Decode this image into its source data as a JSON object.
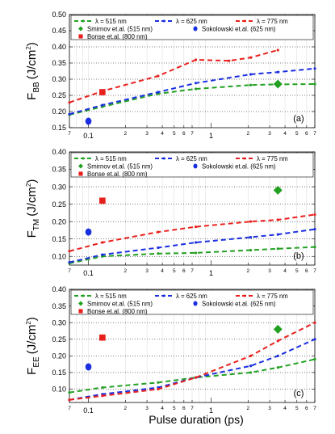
{
  "chart_data": [
    {
      "type": "line",
      "panel_label": "(a)",
      "ylabel_main": "F",
      "ylabel_sub": "BB",
      "ylabel_unit_pre": "(J/cm",
      "ylabel_unit_sup": "2",
      "ylabel_unit_post": ")",
      "ylim": [
        0.15,
        0.5
      ],
      "yticks": [
        0.15,
        0.2,
        0.25,
        0.3,
        0.35,
        0.4,
        0.45,
        0.5
      ],
      "ytick_labels": [
        "0.15",
        "0.20",
        "0.25",
        "0.30",
        "0.35",
        "0.40",
        "0.45",
        "0.50"
      ],
      "legend": {
        "rows": [
          [
            {
              "label": "λ = 515 nm",
              "kind": "line",
              "color": "#22a022"
            },
            {
              "label": "λ = 625 nm",
              "kind": "line",
              "color": "#1a2fe0"
            },
            {
              "label": "λ = 775 nm",
              "kind": "line",
              "color": "#e8201c"
            }
          ],
          [
            {
              "label": "Smirnov et.al. (515 nm)",
              "kind": "diamond",
              "color": "#22a022"
            },
            {
              "label": "Sokolowski et.al. (625 nm)",
              "kind": "circle",
              "color": "#1a2fe0"
            }
          ],
          [
            {
              "label": "Bonse et.al. (800 nm)",
              "kind": "square",
              "color": "#e8201c"
            }
          ]
        ]
      },
      "series": [
        {
          "name": "λ = 515 nm",
          "color": "#22a022",
          "x": [
            0.07,
            0.13,
            0.37,
            0.75,
            2.1,
            3.5,
            7.0
          ],
          "y": [
            0.19,
            0.215,
            0.255,
            0.27,
            0.282,
            0.284,
            0.285
          ]
        },
        {
          "name": "λ = 625 nm",
          "color": "#1a2fe0",
          "x": [
            0.07,
            0.13,
            0.37,
            0.75,
            2.1,
            3.5,
            7.0
          ],
          "y": [
            0.192,
            0.22,
            0.26,
            0.288,
            0.315,
            0.322,
            0.333
          ]
        },
        {
          "name": "λ = 775 nm",
          "color": "#e8201c",
          "x": [
            0.07,
            0.13,
            0.37,
            0.75,
            1.4,
            2.1,
            3.5
          ],
          "y": [
            0.228,
            0.263,
            0.31,
            0.36,
            0.357,
            0.367,
            0.39
          ]
        }
      ],
      "references": [
        {
          "name": "Smirnov et.al. (515 nm)",
          "kind": "diamond",
          "color": "#22a022",
          "x": 3.5,
          "y": 0.285
        },
        {
          "name": "Sokolowski et.al. (625 nm)",
          "kind": "circle",
          "color": "#1a2fe0",
          "x": 0.1,
          "y": 0.17
        },
        {
          "name": "Bonse et.al. (800 nm)",
          "kind": "square",
          "color": "#e8201c",
          "x": 0.13,
          "y": 0.26
        }
      ]
    },
    {
      "type": "line",
      "panel_label": "(b)",
      "ylabel_main": "F",
      "ylabel_sub": "TM",
      "ylabel_unit_pre": "(J/cm",
      "ylabel_unit_sup": "2",
      "ylabel_unit_post": ")",
      "ylim": [
        0.075,
        0.4
      ],
      "yticks": [
        0.1,
        0.15,
        0.2,
        0.25,
        0.3,
        0.35,
        0.4
      ],
      "ytick_labels": [
        "0.10",
        "0.15",
        "0.20",
        "0.25",
        "0.30",
        "0.35",
        "0.40"
      ],
      "legend": {
        "rows": [
          [
            {
              "label": "λ = 515 nm",
              "kind": "line",
              "color": "#22a022"
            },
            {
              "label": "λ = 625 nm",
              "kind": "line",
              "color": "#1a2fe0"
            },
            {
              "label": "λ = 775 nm",
              "kind": "line",
              "color": "#e8201c"
            }
          ],
          [
            {
              "label": "Smirnov et.al. (515 nm)",
              "kind": "diamond",
              "color": "#22a022"
            },
            {
              "label": "Sokolowski et.al. (625 nm)",
              "kind": "circle",
              "color": "#1a2fe0"
            }
          ],
          [
            {
              "label": "Bonse et.al. (800 nm)",
              "kind": "square",
              "color": "#e8201c"
            }
          ]
        ]
      },
      "series": [
        {
          "name": "λ = 515 nm",
          "color": "#22a022",
          "x": [
            0.07,
            0.13,
            0.37,
            0.75,
            2.1,
            3.5,
            7.0
          ],
          "y": [
            0.08,
            0.1,
            0.108,
            0.11,
            0.118,
            0.122,
            0.127
          ]
        },
        {
          "name": "λ = 625 nm",
          "color": "#1a2fe0",
          "x": [
            0.07,
            0.13,
            0.37,
            0.75,
            2.1,
            3.5,
            7.0
          ],
          "y": [
            0.083,
            0.105,
            0.125,
            0.14,
            0.155,
            0.163,
            0.178
          ]
        },
        {
          "name": "λ = 775 nm",
          "color": "#e8201c",
          "x": [
            0.07,
            0.13,
            0.37,
            0.75,
            2.1,
            3.5,
            7.0
          ],
          "y": [
            0.115,
            0.14,
            0.17,
            0.185,
            0.2,
            0.205,
            0.22
          ]
        }
      ],
      "references": [
        {
          "name": "Smirnov et.al. (515 nm)",
          "kind": "diamond",
          "color": "#22a022",
          "x": 3.5,
          "y": 0.29
        },
        {
          "name": "Sokolowski et.al. (625 nm)",
          "kind": "circle",
          "color": "#1a2fe0",
          "x": 0.1,
          "y": 0.17
        },
        {
          "name": "Bonse et.al. (800 nm)",
          "kind": "square",
          "color": "#e8201c",
          "x": 0.13,
          "y": 0.26
        }
      ]
    },
    {
      "type": "line",
      "panel_label": "(c)",
      "ylabel_main": "F",
      "ylabel_sub": "EE",
      "ylabel_unit_pre": "(J/cm",
      "ylabel_unit_sup": "2",
      "ylabel_unit_post": ")",
      "ylim": [
        0.06,
        0.4
      ],
      "yticks": [
        0.1,
        0.15,
        0.2,
        0.25,
        0.3,
        0.35,
        0.4
      ],
      "ytick_labels": [
        "0.10",
        "0.15",
        "0.20",
        "0.25",
        "0.30",
        "0.35",
        "0.40"
      ],
      "legend": {
        "rows": [
          [
            {
              "label": "λ = 515 nm",
              "kind": "line",
              "color": "#22a022"
            },
            {
              "label": "λ = 625 nm",
              "kind": "line",
              "color": "#1a2fe0"
            },
            {
              "label": "λ = 775 nm",
              "kind": "line",
              "color": "#e8201c"
            }
          ],
          [
            {
              "label": "Smirnov et.al. (515 nm)",
              "kind": "diamond",
              "color": "#22a022"
            },
            {
              "label": "Sokolowski et.al. (625 nm)",
              "kind": "circle",
              "color": "#1a2fe0"
            }
          ],
          [
            {
              "label": "Bonse et.al. (800 nm)",
              "kind": "square",
              "color": "#e8201c"
            }
          ]
        ]
      },
      "series": [
        {
          "name": "λ = 515 nm",
          "color": "#22a022",
          "x": [
            0.07,
            0.13,
            0.37,
            0.75,
            2.1,
            3.5,
            7.0
          ],
          "y": [
            0.09,
            0.105,
            0.12,
            0.135,
            0.15,
            0.165,
            0.19
          ]
        },
        {
          "name": "λ = 625 nm",
          "color": "#1a2fe0",
          "x": [
            0.07,
            0.13,
            0.37,
            0.75,
            2.1,
            3.5,
            7.0
          ],
          "y": [
            0.068,
            0.085,
            0.105,
            0.135,
            0.17,
            0.2,
            0.25
          ]
        },
        {
          "name": "λ = 775 nm",
          "color": "#e8201c",
          "x": [
            0.07,
            0.13,
            0.37,
            0.75,
            2.1,
            3.5,
            7.0
          ],
          "y": [
            0.068,
            0.08,
            0.1,
            0.135,
            0.2,
            0.245,
            0.3
          ]
        }
      ],
      "references": [
        {
          "name": "Smirnov et.al. (515 nm)",
          "kind": "diamond",
          "color": "#22a022",
          "x": 3.5,
          "y": 0.28
        },
        {
          "name": "Sokolowski et.al. (625 nm)",
          "kind": "circle",
          "color": "#1a2fe0",
          "x": 0.1,
          "y": 0.167
        },
        {
          "name": "Bonse et.al. (800 nm)",
          "kind": "square",
          "color": "#e8201c",
          "x": 0.13,
          "y": 0.255
        }
      ]
    }
  ],
  "x_axis": {
    "label": "Pulse duration (ps)",
    "scale": "log",
    "xlim": [
      0.07,
      7.0
    ],
    "major_ticks": [
      0.1,
      1
    ],
    "major_tick_labels": [
      "0.1",
      "1"
    ],
    "minor_ticks": [
      0.07,
      0.2,
      0.3,
      0.4,
      0.5,
      0.6,
      0.7,
      2,
      3,
      4,
      5,
      6,
      7
    ],
    "minor_tick_labels": [
      "7",
      "2",
      "3",
      "4",
      "5",
      "6",
      "7",
      "2",
      "3",
      "4",
      "5",
      "6",
      "7"
    ]
  }
}
